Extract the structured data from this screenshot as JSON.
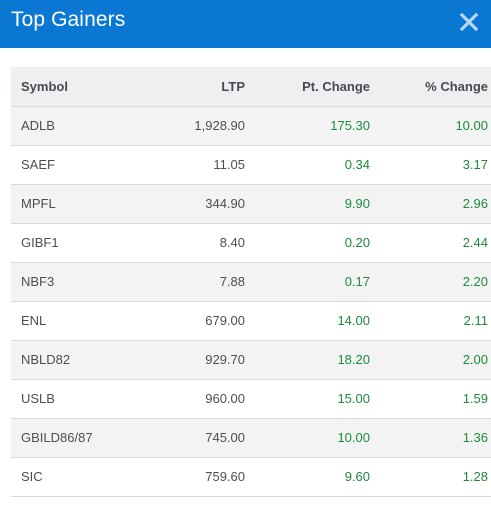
{
  "header": {
    "title": "Top Gainers",
    "close_icon": "close-icon"
  },
  "colors": {
    "header_bg": "#0a78d2",
    "positive": "#1e8a3a",
    "row_stripe": "#f3f3f4"
  },
  "table": {
    "columns": [
      "Symbol",
      "LTP",
      "Pt. Change",
      "% Change"
    ],
    "rows": [
      {
        "symbol": "ADLB",
        "ltp": "1,928.90",
        "pt_change": "175.30",
        "pct_change": "10.00"
      },
      {
        "symbol": "SAEF",
        "ltp": "11.05",
        "pt_change": "0.34",
        "pct_change": "3.17"
      },
      {
        "symbol": "MPFL",
        "ltp": "344.90",
        "pt_change": "9.90",
        "pct_change": "2.96"
      },
      {
        "symbol": "GIBF1",
        "ltp": "8.40",
        "pt_change": "0.20",
        "pct_change": "2.44"
      },
      {
        "symbol": "NBF3",
        "ltp": "7.88",
        "pt_change": "0.17",
        "pct_change": "2.20"
      },
      {
        "symbol": "ENL",
        "ltp": "679.00",
        "pt_change": "14.00",
        "pct_change": "2.11"
      },
      {
        "symbol": "NBLD82",
        "ltp": "929.70",
        "pt_change": "18.20",
        "pct_change": "2.00"
      },
      {
        "symbol": "USLB",
        "ltp": "960.00",
        "pt_change": "15.00",
        "pct_change": "1.59"
      },
      {
        "symbol": "GBILD86/87",
        "ltp": "745.00",
        "pt_change": "10.00",
        "pct_change": "1.36"
      },
      {
        "symbol": "SIC",
        "ltp": "759.60",
        "pt_change": "9.60",
        "pct_change": "1.28"
      }
    ]
  }
}
